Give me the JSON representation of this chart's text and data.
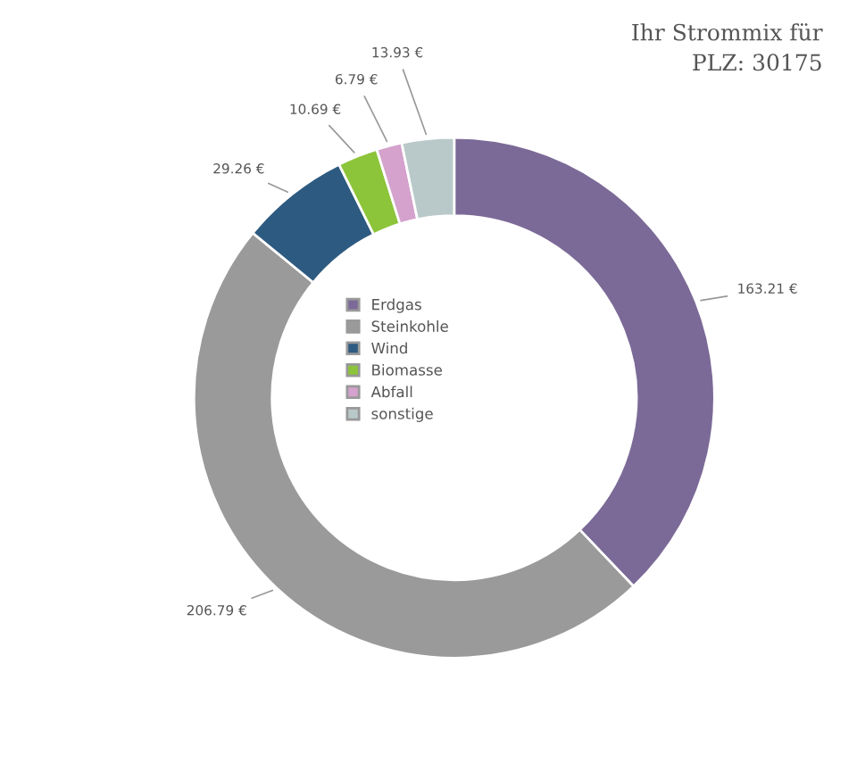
{
  "chart_data": {
    "type": "donut",
    "title": "Ihr Strommix für\nPLZ: 30175",
    "categories": [
      "Erdgas",
      "Steinkohle",
      "Wind",
      "Biomasse",
      "Abfall",
      "sonstige"
    ],
    "values": [
      163.21,
      206.79,
      29.26,
      10.69,
      6.79,
      13.93
    ],
    "colors": [
      "#7b6a97",
      "#9a9a9a",
      "#2d5a80",
      "#8cc43a",
      "#d4a2cc",
      "#b9c9c9"
    ],
    "value_labels": [
      "163.21 €",
      "206.79 €",
      "29.26 €",
      "10.69 €",
      "6.79 €",
      "13.93 €"
    ],
    "legend": "center"
  }
}
